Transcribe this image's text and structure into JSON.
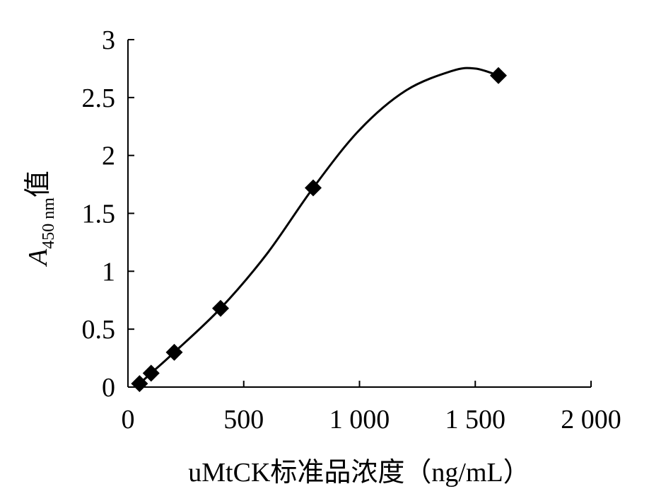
{
  "chart_data": {
    "type": "scatter",
    "xlabel": "uMtCK标准品浓度（ng/mL）",
    "ylabel": {
      "main": "A",
      "subscript": "450 nm",
      "suffix": "值"
    },
    "xlim": [
      0,
      2000
    ],
    "ylim": [
      0,
      3
    ],
    "x_ticks": [
      0,
      500,
      1000,
      1500,
      2000
    ],
    "x_tick_labels": [
      "0",
      "500",
      "1 000",
      "1 500",
      "2 000"
    ],
    "y_ticks": [
      0,
      0.5,
      1,
      1.5,
      2,
      2.5,
      3
    ],
    "y_tick_labels": [
      "0",
      "0.5",
      "1",
      "1.5",
      "2",
      "2.5",
      "3"
    ],
    "grid": false,
    "legend": "none",
    "series": [
      {
        "marker": "diamond",
        "x": [
          50,
          100,
          200,
          400,
          800,
          1600
        ],
        "y": [
          0.03,
          0.12,
          0.3,
          0.68,
          1.72,
          2.69
        ]
      }
    ],
    "trendline": {
      "type": "smooth",
      "x": [
        50,
        100,
        200,
        400,
        600,
        800,
        1000,
        1200,
        1400,
        1500,
        1600
      ],
      "y": [
        0.03,
        0.12,
        0.3,
        0.68,
        1.15,
        1.72,
        2.22,
        2.56,
        2.73,
        2.75,
        2.69
      ]
    }
  }
}
